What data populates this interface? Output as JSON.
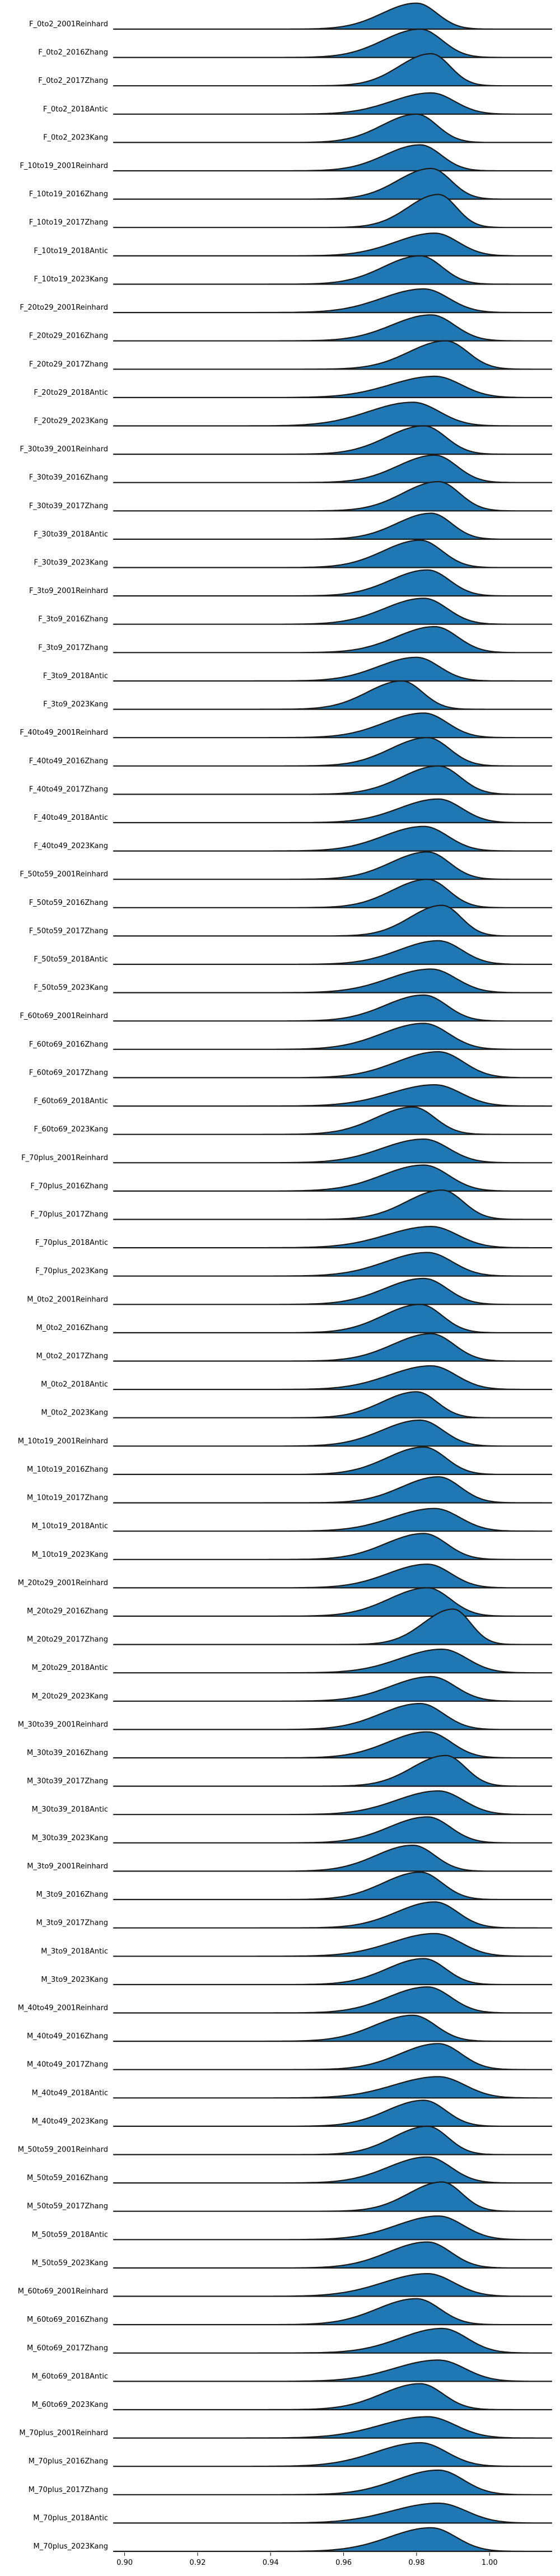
{
  "chart_data": {
    "type": "ridgeline",
    "title": "",
    "xlabel": "",
    "ylabel": "",
    "xlim": [
      0.897,
      1.017
    ],
    "x_ticks": [
      0.9,
      0.92,
      0.94,
      0.96,
      0.98,
      1.0
    ],
    "x_tick_labels": [
      "0.90",
      "0.92",
      "0.94",
      "0.96",
      "0.98",
      "1.00"
    ],
    "fill_color": "#1f77b4",
    "line_color": "#1a1a1a",
    "grid": false,
    "legend": "none",
    "series": [
      {
        "name": "F_0to2_2001Reinhard",
        "mode": 0.98,
        "spread": 0.007,
        "height": 0.55
      },
      {
        "name": "F_0to2_2016Zhang",
        "mode": 0.981,
        "spread": 0.0075,
        "height": 0.6
      },
      {
        "name": "F_0to2_2017Zhang",
        "mode": 0.984,
        "spread": 0.0065,
        "height": 0.68
      },
      {
        "name": "F_0to2_2018Antic",
        "mode": 0.984,
        "spread": 0.008,
        "height": 0.45
      },
      {
        "name": "F_0to2_2023Kang",
        "mode": 0.98,
        "spread": 0.007,
        "height": 0.6
      },
      {
        "name": "F_10to19_2001Reinhard",
        "mode": 0.981,
        "spread": 0.0072,
        "height": 0.55
      },
      {
        "name": "F_10to19_2016Zhang",
        "mode": 0.984,
        "spread": 0.0068,
        "height": 0.65
      },
      {
        "name": "F_10to19_2017Zhang",
        "mode": 0.986,
        "spread": 0.0062,
        "height": 0.7
      },
      {
        "name": "F_10to19_2018Antic",
        "mode": 0.985,
        "spread": 0.008,
        "height": 0.48
      },
      {
        "name": "F_10to19_2023Kang",
        "mode": 0.981,
        "spread": 0.0075,
        "height": 0.6
      },
      {
        "name": "F_20to29_2001Reinhard",
        "mode": 0.982,
        "spread": 0.0085,
        "height": 0.5
      },
      {
        "name": "F_20to29_2016Zhang",
        "mode": 0.984,
        "spread": 0.008,
        "height": 0.55
      },
      {
        "name": "F_20to29_2017Zhang",
        "mode": 0.988,
        "spread": 0.0075,
        "height": 0.6
      },
      {
        "name": "F_20to29_2018Antic",
        "mode": 0.985,
        "spread": 0.009,
        "height": 0.45
      },
      {
        "name": "F_20to29_2023Kang",
        "mode": 0.979,
        "spread": 0.009,
        "height": 0.5
      },
      {
        "name": "F_30to39_2001Reinhard",
        "mode": 0.982,
        "spread": 0.0075,
        "height": 0.6
      },
      {
        "name": "F_30to39_2016Zhang",
        "mode": 0.985,
        "spread": 0.0075,
        "height": 0.58
      },
      {
        "name": "F_30to39_2017Zhang",
        "mode": 0.986,
        "spread": 0.0072,
        "height": 0.62
      },
      {
        "name": "F_30to39_2018Antic",
        "mode": 0.984,
        "spread": 0.007,
        "height": 0.55
      },
      {
        "name": "F_30to39_2023Kang",
        "mode": 0.981,
        "spread": 0.0075,
        "height": 0.58
      },
      {
        "name": "F_3to9_2001Reinhard",
        "mode": 0.983,
        "spread": 0.0075,
        "height": 0.55
      },
      {
        "name": "F_3to9_2016Zhang",
        "mode": 0.982,
        "spread": 0.008,
        "height": 0.55
      },
      {
        "name": "F_3to9_2017Zhang",
        "mode": 0.985,
        "spread": 0.0078,
        "height": 0.55
      },
      {
        "name": "F_3to9_2018Antic",
        "mode": 0.98,
        "spread": 0.0078,
        "height": 0.5
      },
      {
        "name": "F_3to9_2023Kang",
        "mode": 0.976,
        "spread": 0.007,
        "height": 0.6
      },
      {
        "name": "F_40to49_2001Reinhard",
        "mode": 0.982,
        "spread": 0.008,
        "height": 0.52
      },
      {
        "name": "F_40to49_2016Zhang",
        "mode": 0.983,
        "spread": 0.0075,
        "height": 0.6
      },
      {
        "name": "F_40to49_2017Zhang",
        "mode": 0.986,
        "spread": 0.0075,
        "height": 0.6
      },
      {
        "name": "F_40to49_2018Antic",
        "mode": 0.986,
        "spread": 0.008,
        "height": 0.5
      },
      {
        "name": "F_40to49_2023Kang",
        "mode": 0.982,
        "spread": 0.0082,
        "height": 0.52
      },
      {
        "name": "F_50to59_2001Reinhard",
        "mode": 0.983,
        "spread": 0.0075,
        "height": 0.58
      },
      {
        "name": "F_50to59_2016Zhang",
        "mode": 0.983,
        "spread": 0.0072,
        "height": 0.6
      },
      {
        "name": "F_50to59_2017Zhang",
        "mode": 0.987,
        "spread": 0.0065,
        "height": 0.65
      },
      {
        "name": "F_50to59_2018Antic",
        "mode": 0.986,
        "spread": 0.008,
        "height": 0.5
      },
      {
        "name": "F_50to59_2023Kang",
        "mode": 0.984,
        "spread": 0.0085,
        "height": 0.5
      },
      {
        "name": "F_60to69_2001Reinhard",
        "mode": 0.982,
        "spread": 0.0078,
        "height": 0.55
      },
      {
        "name": "F_60to69_2016Zhang",
        "mode": 0.982,
        "spread": 0.0085,
        "height": 0.55
      },
      {
        "name": "F_60to69_2017Zhang",
        "mode": 0.986,
        "spread": 0.0085,
        "height": 0.55
      },
      {
        "name": "F_60to69_2018Antic",
        "mode": 0.985,
        "spread": 0.009,
        "height": 0.45
      },
      {
        "name": "F_60to69_2023Kang",
        "mode": 0.979,
        "spread": 0.0075,
        "height": 0.58
      },
      {
        "name": "F_70plus_2001Reinhard",
        "mode": 0.982,
        "spread": 0.0085,
        "height": 0.5
      },
      {
        "name": "F_70plus_2016Zhang",
        "mode": 0.982,
        "spread": 0.0085,
        "height": 0.55
      },
      {
        "name": "F_70plus_2017Zhang",
        "mode": 0.987,
        "spread": 0.0072,
        "height": 0.62
      },
      {
        "name": "F_70plus_2018Antic",
        "mode": 0.984,
        "spread": 0.009,
        "height": 0.45
      },
      {
        "name": "F_70plus_2023Kang",
        "mode": 0.983,
        "spread": 0.0085,
        "height": 0.5
      },
      {
        "name": "M_0to2_2001Reinhard",
        "mode": 0.982,
        "spread": 0.008,
        "height": 0.55
      },
      {
        "name": "M_0to2_2016Zhang",
        "mode": 0.981,
        "spread": 0.0075,
        "height": 0.6
      },
      {
        "name": "M_0to2_2017Zhang",
        "mode": 0.984,
        "spread": 0.0078,
        "height": 0.58
      },
      {
        "name": "M_0to2_2018Antic",
        "mode": 0.984,
        "spread": 0.0085,
        "height": 0.5
      },
      {
        "name": "M_0to2_2023Kang",
        "mode": 0.98,
        "spread": 0.007,
        "height": 0.55
      },
      {
        "name": "M_10to19_2001Reinhard",
        "mode": 0.981,
        "spread": 0.0078,
        "height": 0.55
      },
      {
        "name": "M_10to19_2016Zhang",
        "mode": 0.982,
        "spread": 0.0075,
        "height": 0.58
      },
      {
        "name": "M_10to19_2017Zhang",
        "mode": 0.986,
        "spread": 0.0075,
        "height": 0.55
      },
      {
        "name": "M_10to19_2018Antic",
        "mode": 0.985,
        "spread": 0.0085,
        "height": 0.48
      },
      {
        "name": "M_10to19_2023Kang",
        "mode": 0.982,
        "spread": 0.0078,
        "height": 0.55
      },
      {
        "name": "M_20to29_2001Reinhard",
        "mode": 0.983,
        "spread": 0.008,
        "height": 0.5
      },
      {
        "name": "M_20to29_2016Zhang",
        "mode": 0.983,
        "spread": 0.0078,
        "height": 0.6
      },
      {
        "name": "M_20to29_2017Zhang",
        "mode": 0.99,
        "spread": 0.006,
        "height": 0.75
      },
      {
        "name": "M_20to29_2018Antic",
        "mode": 0.987,
        "spread": 0.0085,
        "height": 0.5
      },
      {
        "name": "M_20to29_2023Kang",
        "mode": 0.984,
        "spread": 0.0082,
        "height": 0.52
      },
      {
        "name": "M_30to39_2001Reinhard",
        "mode": 0.981,
        "spread": 0.008,
        "height": 0.55
      },
      {
        "name": "M_30to39_2016Zhang",
        "mode": 0.983,
        "spread": 0.008,
        "height": 0.55
      },
      {
        "name": "M_30to39_2017Zhang",
        "mode": 0.988,
        "spread": 0.0068,
        "height": 0.65
      },
      {
        "name": "M_30to39_2018Antic",
        "mode": 0.986,
        "spread": 0.0085,
        "height": 0.5
      },
      {
        "name": "M_30to39_2023Kang",
        "mode": 0.983,
        "spread": 0.0078,
        "height": 0.55
      },
      {
        "name": "M_3to9_2001Reinhard",
        "mode": 0.979,
        "spread": 0.0075,
        "height": 0.55
      },
      {
        "name": "M_3to9_2016Zhang",
        "mode": 0.981,
        "spread": 0.0075,
        "height": 0.58
      },
      {
        "name": "M_3to9_2017Zhang",
        "mode": 0.985,
        "spread": 0.0078,
        "height": 0.55
      },
      {
        "name": "M_3to9_2018Antic",
        "mode": 0.985,
        "spread": 0.0088,
        "height": 0.48
      },
      {
        "name": "M_3to9_2023Kang",
        "mode": 0.982,
        "spread": 0.0075,
        "height": 0.55
      },
      {
        "name": "M_40to49_2001Reinhard",
        "mode": 0.983,
        "spread": 0.008,
        "height": 0.55
      },
      {
        "name": "M_40to49_2016Zhang",
        "mode": 0.979,
        "spread": 0.0078,
        "height": 0.55
      },
      {
        "name": "M_40to49_2017Zhang",
        "mode": 0.986,
        "spread": 0.0078,
        "height": 0.55
      },
      {
        "name": "M_40to49_2018Antic",
        "mode": 0.986,
        "spread": 0.009,
        "height": 0.45
      },
      {
        "name": "M_40to49_2023Kang",
        "mode": 0.982,
        "spread": 0.0075,
        "height": 0.55
      },
      {
        "name": "M_50to59_2001Reinhard",
        "mode": 0.983,
        "spread": 0.007,
        "height": 0.6
      },
      {
        "name": "M_50to59_2016Zhang",
        "mode": 0.983,
        "spread": 0.008,
        "height": 0.55
      },
      {
        "name": "M_50to59_2017Zhang",
        "mode": 0.987,
        "spread": 0.0068,
        "height": 0.62
      },
      {
        "name": "M_50to59_2018Antic",
        "mode": 0.986,
        "spread": 0.0085,
        "height": 0.5
      },
      {
        "name": "M_50to59_2023Kang",
        "mode": 0.983,
        "spread": 0.008,
        "height": 0.55
      },
      {
        "name": "M_60to69_2001Reinhard",
        "mode": 0.983,
        "spread": 0.009,
        "height": 0.48
      },
      {
        "name": "M_60to69_2016Zhang",
        "mode": 0.98,
        "spread": 0.008,
        "height": 0.55
      },
      {
        "name": "M_60to69_2017Zhang",
        "mode": 0.987,
        "spread": 0.0085,
        "height": 0.52
      },
      {
        "name": "M_60to69_2018Antic",
        "mode": 0.986,
        "spread": 0.009,
        "height": 0.45
      },
      {
        "name": "M_60to69_2023Kang",
        "mode": 0.981,
        "spread": 0.0078,
        "height": 0.55
      },
      {
        "name": "M_70plus_2001Reinhard",
        "mode": 0.983,
        "spread": 0.0095,
        "height": 0.45
      },
      {
        "name": "M_70plus_2016Zhang",
        "mode": 0.981,
        "spread": 0.009,
        "height": 0.5
      },
      {
        "name": "M_70plus_2017Zhang",
        "mode": 0.986,
        "spread": 0.0085,
        "height": 0.52
      },
      {
        "name": "M_70plus_2018Antic",
        "mode": 0.986,
        "spread": 0.0095,
        "height": 0.42
      },
      {
        "name": "M_70plus_2023Kang",
        "mode": 0.984,
        "spread": 0.0085,
        "height": 0.5
      }
    ]
  }
}
